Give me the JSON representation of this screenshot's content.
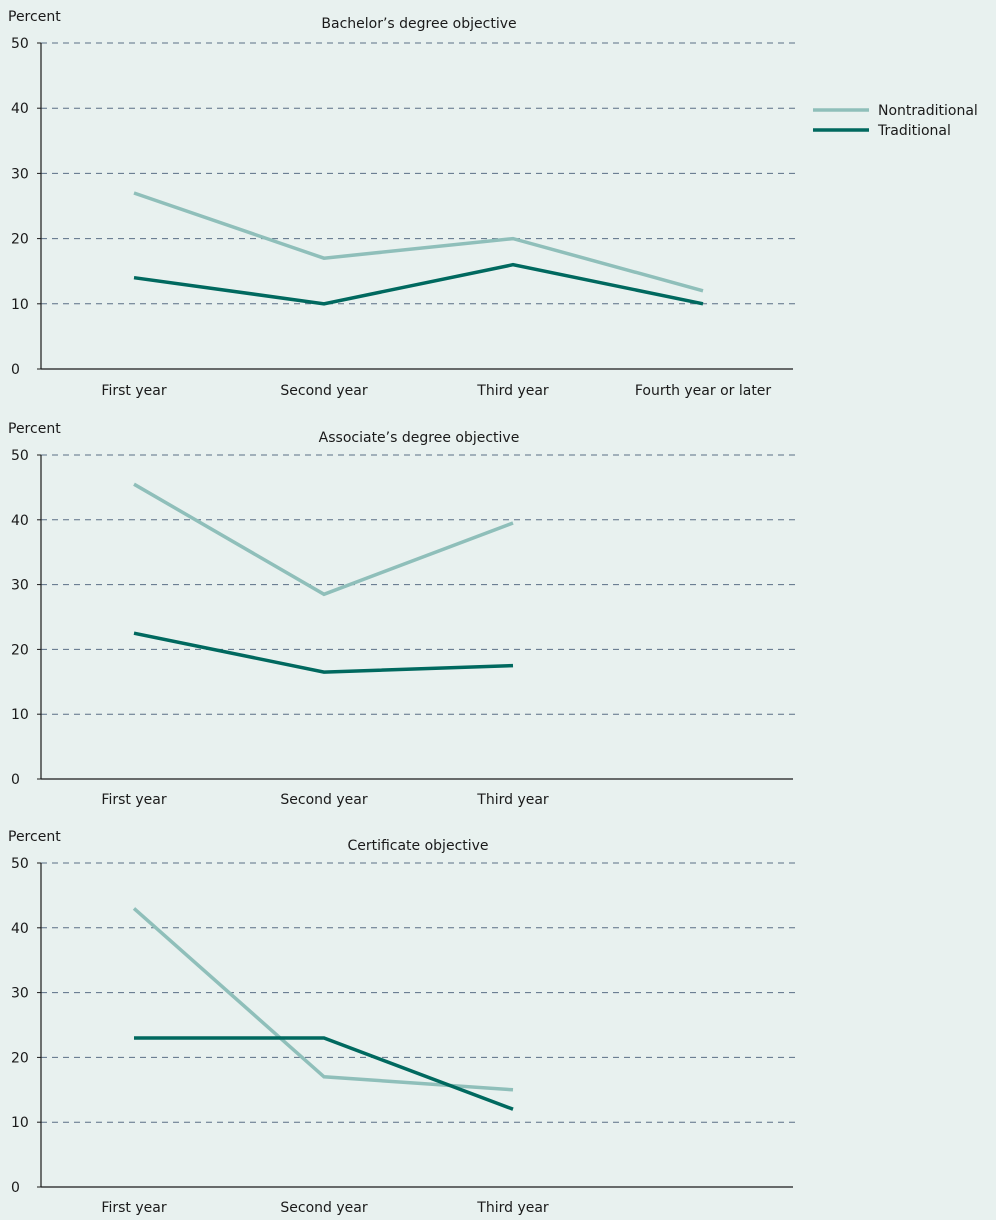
{
  "legend": {
    "placement": "top-right",
    "items": [
      {
        "name": "Nontraditional",
        "color": "#8fbfba"
      },
      {
        "name": "Traditional",
        "color": "#00695f"
      }
    ]
  },
  "chart_data": [
    {
      "type": "line",
      "title": "Bachelor’s degree objective",
      "ylabel": "Percent",
      "xlabel": "",
      "ylim": [
        0,
        50
      ],
      "yticks": [
        0,
        10,
        20,
        30,
        40,
        50
      ],
      "grid": true,
      "categories": [
        "First year",
        "Second year",
        "Third year",
        "Fourth year or later"
      ],
      "series": [
        {
          "name": "Nontraditional",
          "color": "#8fbfba",
          "values": [
            27,
            17,
            20,
            12
          ]
        },
        {
          "name": "Traditional",
          "color": "#00695f",
          "values": [
            14,
            10,
            16,
            10
          ]
        }
      ]
    },
    {
      "type": "line",
      "title": "Associate’s degree objective",
      "ylabel": "Percent",
      "xlabel": "",
      "ylim": [
        0,
        50
      ],
      "yticks": [
        0,
        10,
        20,
        30,
        40,
        50
      ],
      "grid": true,
      "categories": [
        "First year",
        "Second year",
        "Third year"
      ],
      "series": [
        {
          "name": "Nontraditional",
          "color": "#8fbfba",
          "values": [
            45.5,
            28.5,
            39.5
          ]
        },
        {
          "name": "Traditional",
          "color": "#00695f",
          "values": [
            22.5,
            16.5,
            17.5
          ]
        }
      ]
    },
    {
      "type": "line",
      "title": "Certificate objective",
      "ylabel": "Percent",
      "xlabel": "",
      "ylim": [
        0,
        50
      ],
      "yticks": [
        0,
        10,
        20,
        30,
        40,
        50
      ],
      "grid": true,
      "categories": [
        "First year",
        "Second year",
        "Third year"
      ],
      "series": [
        {
          "name": "Nontraditional",
          "color": "#8fbfba",
          "values": [
            43,
            17,
            15
          ]
        },
        {
          "name": "Traditional",
          "color": "#00695f",
          "values": [
            23,
            23,
            12
          ]
        }
      ]
    }
  ]
}
